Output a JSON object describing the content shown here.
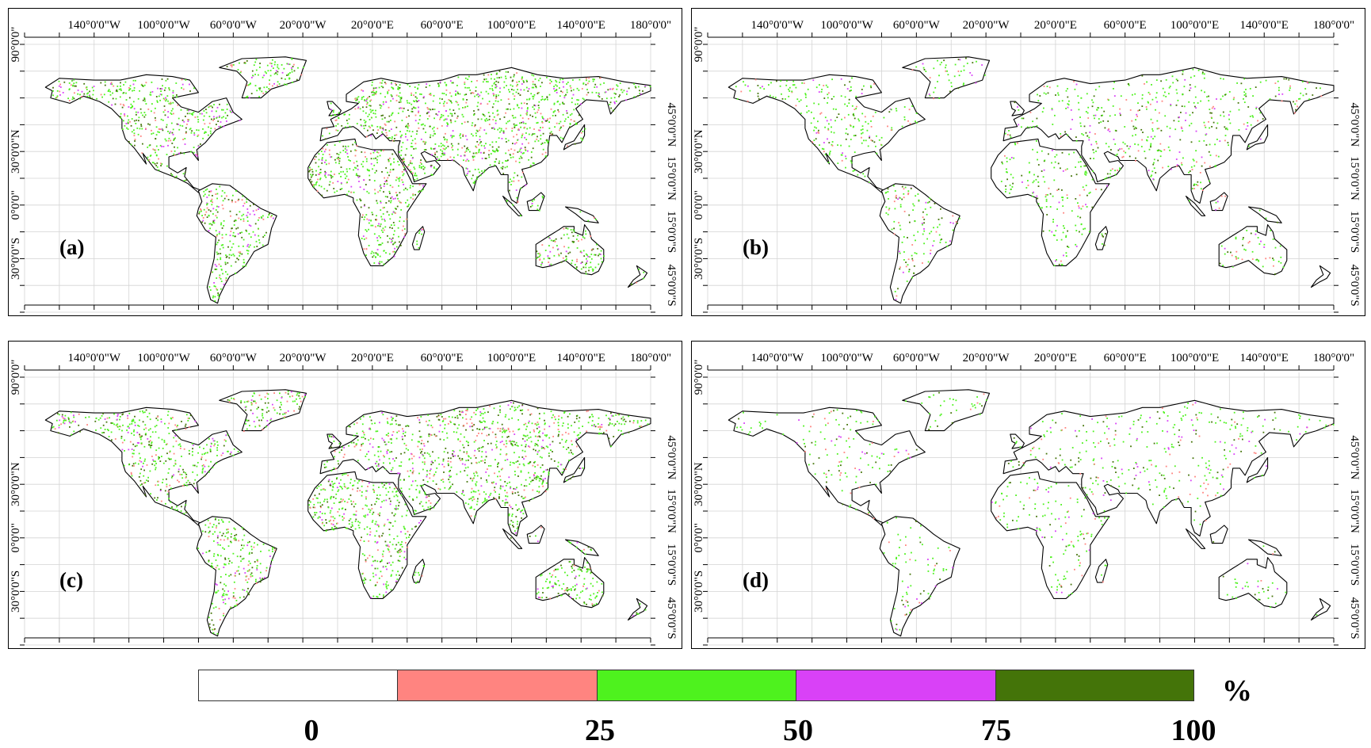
{
  "maps": [
    {
      "label": "(a)",
      "density": 1.0,
      "seed": 11
    },
    {
      "label": "(b)",
      "density": 0.45,
      "seed": 23
    },
    {
      "label": "(c)",
      "density": 0.9,
      "seed": 37
    },
    {
      "label": "(d)",
      "density": 0.3,
      "seed": 51
    }
  ],
  "top_ticks": [
    "140°0'0\"W",
    "100°0'0\"W",
    "60°0'0\"W",
    "20°0'0\"W",
    "20°0'0\"E",
    "60°0'0\"E",
    "100°0'0\"E",
    "140°0'0\"E",
    "180°0'0\""
  ],
  "left_ticks": [
    "90°0'0\"",
    "30°0'0\"N",
    "0°0'0\"",
    "30°0'0\"S"
  ],
  "right_ticks": [
    "45°0'0\"N",
    "15°0'0\"N",
    "15°0'0\"S",
    "45°0'0\"S"
  ],
  "legend": {
    "classes": [
      {
        "color": "#ffffff"
      },
      {
        "color": "#ff8480"
      },
      {
        "color": "#4ef21e"
      },
      {
        "color": "#d941f7"
      },
      {
        "color": "#447409"
      }
    ],
    "labels": [
      "0",
      "25",
      "50",
      "75",
      "100"
    ],
    "unit": "%"
  }
}
